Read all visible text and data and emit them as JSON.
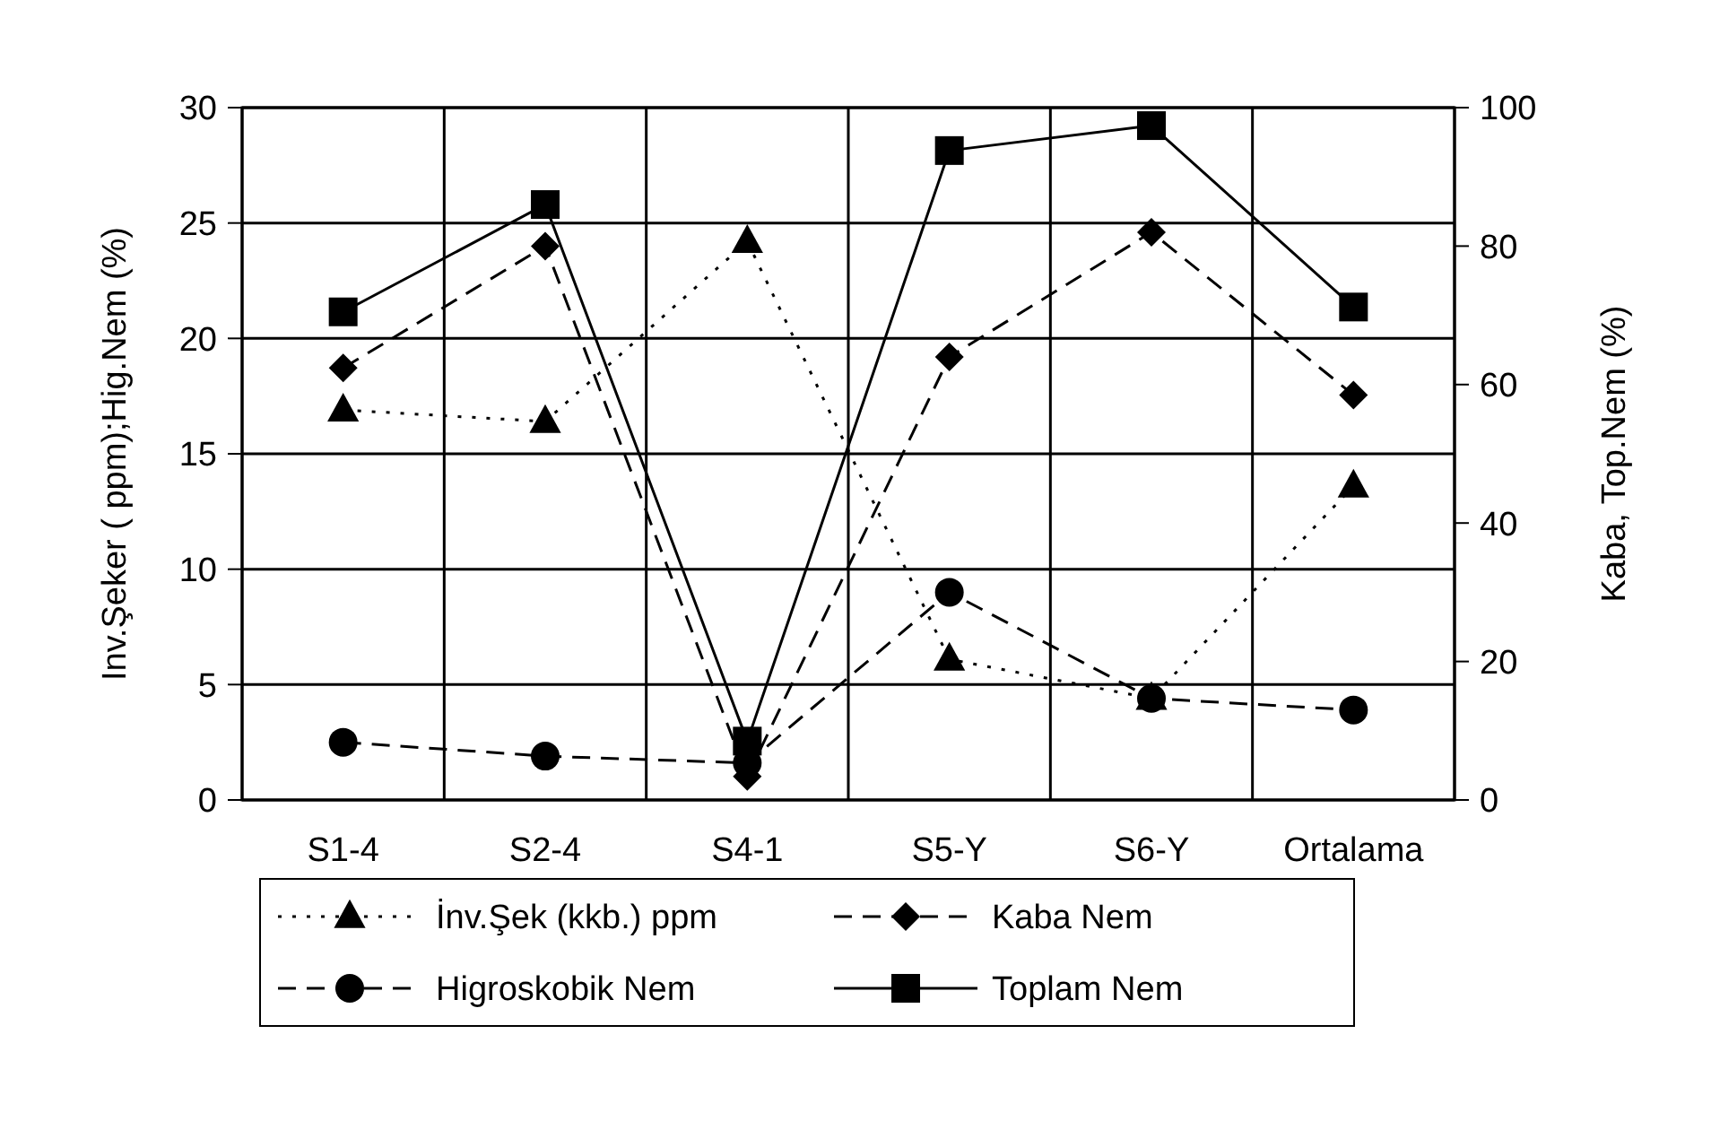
{
  "chart_data": {
    "type": "line",
    "categories": [
      "S1-4",
      "S2-4",
      "S4-1",
      "S5-Y",
      "S6-Y",
      "Ortalama"
    ],
    "ylabel": "Inv.Şeker ( ppm);Hig.Nem (%)",
    "y2label": "Kaba, Top.Nem (%)",
    "ylim": [
      0,
      30
    ],
    "yticks": [
      0,
      5,
      10,
      15,
      20,
      25,
      30
    ],
    "y2lim": [
      0,
      100
    ],
    "y2ticks": [
      0,
      20,
      40,
      60,
      80,
      100
    ],
    "grid": true,
    "legend": "bottom",
    "series": [
      {
        "name": "İnv.Şek (kkb.) ppm",
        "color": "#000000",
        "marker": "triangle",
        "line_style": "dotted",
        "values": [
          16.9,
          16.4,
          24.2,
          6.1,
          4.4,
          13.6
        ]
      },
      {
        "name": "Kaba Nem",
        "color": "#000000",
        "marker": "diamond",
        "line_style": "dashed",
        "axis": "y2",
        "values": [
          62.4,
          80,
          3.4,
          64,
          82,
          58.5
        ]
      },
      {
        "name": "Higroskobik Nem",
        "color": "#000000",
        "marker": "circle",
        "line_style": "dashed",
        "values": [
          2.5,
          1.9,
          1.6,
          9.0,
          4.4,
          3.9
        ]
      },
      {
        "name": "Toplam Nem",
        "color": "#000000",
        "marker": "square",
        "line_style": "solid",
        "axis": "y2",
        "values": [
          70.5,
          86,
          8.5,
          93.8,
          97.4,
          71.2
        ]
      }
    ]
  }
}
